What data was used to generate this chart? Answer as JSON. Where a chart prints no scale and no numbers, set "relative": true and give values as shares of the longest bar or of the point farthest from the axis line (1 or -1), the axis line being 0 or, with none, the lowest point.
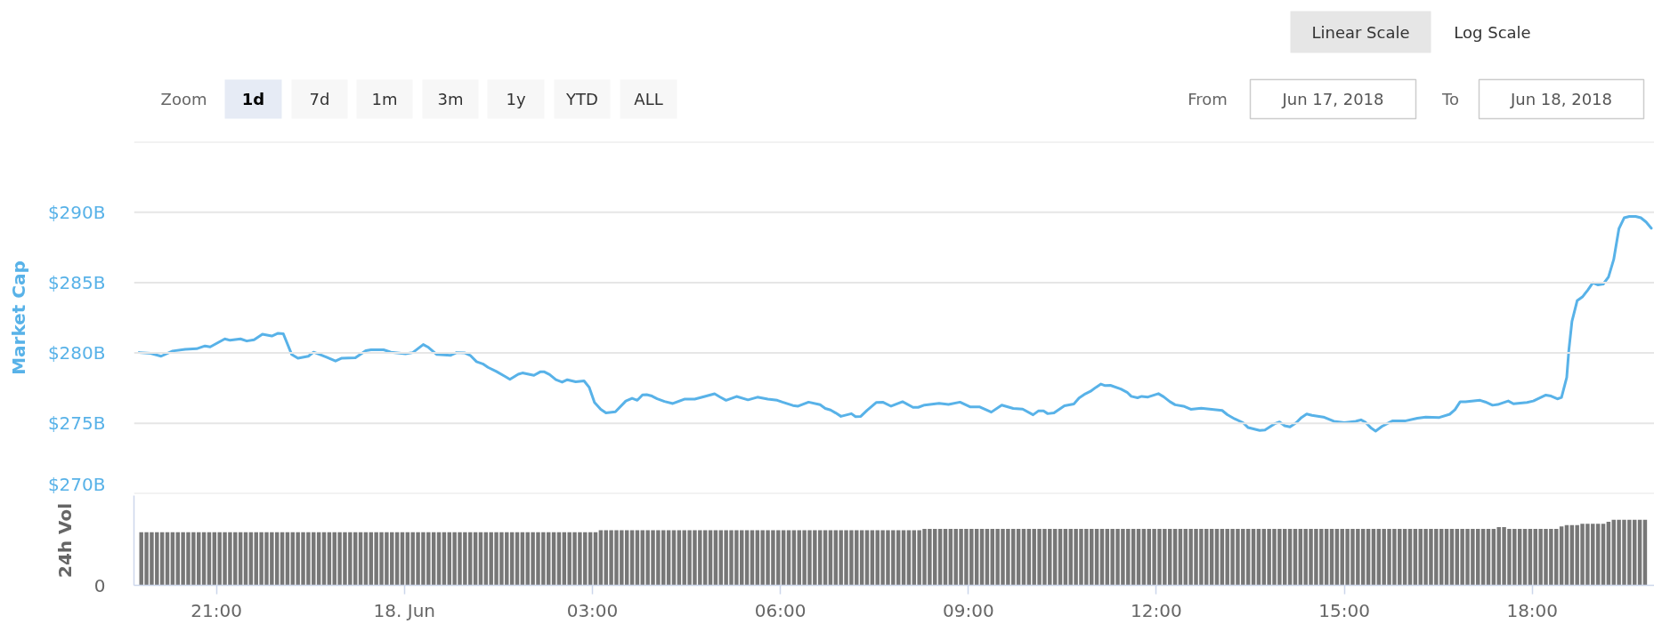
{
  "chart_data": [
    {
      "type": "line",
      "ylabel": "Market Cap",
      "color": "#58b2e8",
      "xlim": [
        "2018-06-17T19:41",
        "2018-06-18T19:57"
      ],
      "ylim": [
        270,
        295
      ],
      "yticks": [
        {
          "value": 270,
          "label": "$270B"
        },
        {
          "value": 275,
          "label": "$275B"
        },
        {
          "value": 280,
          "label": "$280B"
        },
        {
          "value": 285,
          "label": "$285B"
        },
        {
          "value": 290,
          "label": "$290B"
        },
        {
          "value": 295,
          "label": null
        }
      ],
      "grid": "y",
      "tick_labels": "y",
      "annotations": [
        "Linear Scale",
        "Log Scale",
        "Zoom",
        "1d",
        "7d",
        "1m",
        "3m",
        "1y",
        "YTD",
        "ALL",
        "From",
        "Jun 17, 2018",
        "To",
        "Jun 18, 2018"
      ],
      "x": [
        "2018-06-17T19:46",
        "2018-06-17T19:57",
        "2018-06-17T20:07",
        "2018-06-17T20:18",
        "2018-06-17T20:30",
        "2018-06-17T20:41",
        "2018-06-17T20:49",
        "2018-06-17T20:54",
        "2018-06-17T21:08",
        "2018-06-17T21:13",
        "2018-06-17T21:23",
        "2018-06-17T21:29",
        "2018-06-17T21:36",
        "2018-06-17T21:44",
        "2018-06-17T21:53",
        "2018-06-17T21:59",
        "2018-06-17T22:04",
        "2018-06-17T22:12",
        "2018-06-17T22:18",
        "2018-06-17T22:28",
        "2018-06-17T22:33",
        "2018-06-17T22:45",
        "2018-06-17T22:54",
        "2018-06-17T23:00",
        "2018-06-17T23:13",
        "2018-06-17T23:23",
        "2018-06-17T23:28",
        "2018-06-17T23:40",
        "2018-06-17T23:47",
        "2018-06-18T00:01",
        "2018-06-18T00:08",
        "2018-06-18T00:18",
        "2018-06-18T00:23",
        "2018-06-18T00:31",
        "2018-06-18T00:44",
        "2018-06-18T00:50",
        "2018-06-18T00:58",
        "2018-06-18T01:03",
        "2018-06-18T01:09",
        "2018-06-18T01:15",
        "2018-06-18T01:20",
        "2018-06-18T01:28",
        "2018-06-18T01:36",
        "2018-06-18T01:41",
        "2018-06-18T01:49",
        "2018-06-18T01:53",
        "2018-06-18T02:04",
        "2018-06-18T02:10",
        "2018-06-18T02:14",
        "2018-06-18T02:19",
        "2018-06-18T02:25",
        "2018-06-18T02:31",
        "2018-06-18T02:36",
        "2018-06-18T02:44",
        "2018-06-18T02:52",
        "2018-06-18T02:57",
        "2018-06-18T03:02",
        "2018-06-18T03:08",
        "2018-06-18T03:13",
        "2018-06-18T03:22",
        "2018-06-18T03:32",
        "2018-06-18T03:38",
        "2018-06-18T03:43",
        "2018-06-18T03:48",
        "2018-06-18T03:52",
        "2018-06-18T03:57",
        "2018-06-18T04:02",
        "2018-06-18T04:09",
        "2018-06-18T04:17",
        "2018-06-18T04:28",
        "2018-06-18T04:38",
        "2018-06-18T04:46",
        "2018-06-18T04:57",
        "2018-06-18T05:02",
        "2018-06-18T05:08",
        "2018-06-18T05:18",
        "2018-06-18T05:29",
        "2018-06-18T05:38",
        "2018-06-18T05:48",
        "2018-06-18T05:57",
        "2018-06-18T06:02",
        "2018-06-18T06:12",
        "2018-06-18T06:17",
        "2018-06-18T06:27",
        "2018-06-18T06:38",
        "2018-06-18T06:43",
        "2018-06-18T06:48",
        "2018-06-18T06:53",
        "2018-06-18T06:58",
        "2018-06-18T07:08",
        "2018-06-18T07:12",
        "2018-06-18T07:17",
        "2018-06-18T07:23",
        "2018-06-18T07:32",
        "2018-06-18T07:38",
        "2018-06-18T07:46",
        "2018-06-18T07:57",
        "2018-06-18T08:07",
        "2018-06-18T08:12",
        "2018-06-18T08:18",
        "2018-06-18T08:32",
        "2018-06-18T08:41",
        "2018-06-18T08:52",
        "2018-06-18T09:02",
        "2018-06-18T09:11",
        "2018-06-18T09:22",
        "2018-06-18T09:32",
        "2018-06-18T09:43",
        "2018-06-18T09:52",
        "2018-06-18T10:02",
        "2018-06-18T10:07",
        "2018-06-18T10:12",
        "2018-06-18T10:16",
        "2018-06-18T10:22",
        "2018-06-18T10:32",
        "2018-06-18T10:41",
        "2018-06-18T10:46",
        "2018-06-18T10:52",
        "2018-06-18T10:57",
        "2018-06-18T11:02",
        "2018-06-18T11:07",
        "2018-06-18T11:11",
        "2018-06-18T11:16",
        "2018-06-18T11:26",
        "2018-06-18T11:32",
        "2018-06-18T11:36",
        "2018-06-18T11:42",
        "2018-06-18T11:46",
        "2018-06-18T11:52",
        "2018-06-18T12:02",
        "2018-06-18T12:07",
        "2018-06-18T12:13",
        "2018-06-18T12:18",
        "2018-06-18T12:26",
        "2018-06-18T12:33",
        "2018-06-18T12:43",
        "2018-06-18T12:53",
        "2018-06-18T13:03",
        "2018-06-18T13:08",
        "2018-06-18T13:15",
        "2018-06-18T13:23",
        "2018-06-18T13:28",
        "2018-06-18T13:39",
        "2018-06-18T13:44",
        "2018-06-18T13:54",
        "2018-06-18T13:58",
        "2018-06-18T14:03",
        "2018-06-18T14:08",
        "2018-06-18T14:14",
        "2018-06-18T14:19",
        "2018-06-18T14:24",
        "2018-06-18T14:29",
        "2018-06-18T14:40",
        "2018-06-18T14:50",
        "2018-06-18T15:00",
        "2018-06-18T15:11",
        "2018-06-18T15:16",
        "2018-06-18T15:20",
        "2018-06-18T15:26",
        "2018-06-18T15:30",
        "2018-06-18T15:36",
        "2018-06-18T15:41",
        "2018-06-18T15:46",
        "2018-06-18T15:58",
        "2018-06-18T16:10",
        "2018-06-18T16:18",
        "2018-06-18T16:31",
        "2018-06-18T16:41",
        "2018-06-18T16:46",
        "2018-06-18T16:51",
        "2018-06-18T16:56",
        "2018-06-18T17:10",
        "2018-06-18T17:15",
        "2018-06-18T17:22",
        "2018-06-18T17:27",
        "2018-06-18T17:37",
        "2018-06-18T17:42",
        "2018-06-18T17:55",
        "2018-06-18T18:01",
        "2018-06-18T18:13",
        "2018-06-18T18:18",
        "2018-06-18T18:24",
        "2018-06-18T18:28",
        "2018-06-18T18:33",
        "2018-06-18T18:35",
        "2018-06-18T18:38",
        "2018-06-18T18:43",
        "2018-06-18T18:48",
        "2018-06-18T18:53",
        "2018-06-18T18:58",
        "2018-06-18T19:03",
        "2018-06-18T19:08",
        "2018-06-18T19:13",
        "2018-06-18T19:18",
        "2018-06-18T19:23",
        "2018-06-18T19:28",
        "2018-06-18T19:33",
        "2018-06-18T19:39",
        "2018-06-18T19:44",
        "2018-06-18T19:49",
        "2018-06-18T19:54"
      ],
      "values": [
        280.03,
        279.97,
        279.77,
        280.14,
        280.26,
        280.3,
        280.5,
        280.43,
        281,
        280.9,
        281,
        280.85,
        280.94,
        281.33,
        281.2,
        281.4,
        281.36,
        279.9,
        279.63,
        279.77,
        280.06,
        279.72,
        279.43,
        279.63,
        279.66,
        280.17,
        280.23,
        280.23,
        280.06,
        279.94,
        280.03,
        280.6,
        280.4,
        279.89,
        279.83,
        280.03,
        280,
        279.83,
        279.38,
        279.23,
        278.98,
        278.69,
        278.35,
        278.13,
        278.49,
        278.58,
        278.41,
        278.66,
        278.66,
        278.47,
        278.1,
        277.93,
        278.1,
        277.95,
        278.02,
        277.55,
        276.49,
        276,
        275.74,
        275.82,
        276.59,
        276.78,
        276.64,
        277.02,
        277.04,
        276.94,
        276.75,
        276.56,
        276.41,
        276.72,
        276.72,
        276.88,
        277.1,
        276.88,
        276.64,
        276.91,
        276.67,
        276.86,
        276.72,
        276.64,
        276.51,
        276.27,
        276.22,
        276.51,
        276.33,
        276.06,
        275.95,
        275.74,
        275.5,
        275.69,
        275.48,
        275.5,
        275.93,
        276.49,
        276.51,
        276.22,
        276.54,
        276.14,
        276.14,
        276.3,
        276.43,
        276.35,
        276.51,
        276.17,
        276.17,
        275.8,
        276.3,
        276.06,
        276.01,
        275.61,
        275.88,
        275.88,
        275.69,
        275.74,
        276.25,
        276.38,
        276.8,
        277.1,
        277.28,
        277.55,
        277.79,
        277.68,
        277.7,
        277.44,
        277.21,
        276.92,
        276.82,
        276.92,
        276.87,
        277.11,
        276.89,
        276.54,
        276.32,
        276.22,
        276,
        276.07,
        276,
        275.92,
        275.62,
        275.32,
        275.05,
        274.7,
        274.5,
        274.53,
        275,
        275.1,
        274.83,
        274.75,
        275.05,
        275.42,
        275.67,
        275.57,
        275.45,
        275.15,
        275.05,
        275.15,
        275.25,
        275.1,
        274.65,
        274.45,
        274.78,
        274.98,
        275.17,
        275.17,
        275.37,
        275.45,
        275.42,
        275.65,
        275.97,
        276.54,
        276.54,
        276.64,
        276.52,
        276.29,
        276.34,
        276.59,
        276.39,
        276.49,
        276.59,
        277.01,
        276.94,
        276.74,
        276.84,
        278.26,
        280.17,
        282.24,
        283.71,
        283.98,
        284.45,
        284.98,
        284.83,
        284.9,
        285.4,
        286.64,
        288.83,
        289.6,
        289.7,
        289.7,
        289.6,
        289.3,
        288.86
      ]
    },
    {
      "type": "bar",
      "relative": true,
      "ylabel": "24h Vol",
      "color": "#777777",
      "xlim": [
        "2018-06-17T19:41",
        "2018-06-18T19:57"
      ],
      "xticks": [
        {
          "value": "2018-06-17T21:00",
          "label": "21:00"
        },
        {
          "value": "2018-06-18T00:00",
          "label": "18. Jun"
        },
        {
          "value": "2018-06-18T03:00",
          "label": "03:00"
        },
        {
          "value": "2018-06-18T06:00",
          "label": "06:00"
        },
        {
          "value": "2018-06-18T09:00",
          "label": "09:00"
        },
        {
          "value": "2018-06-18T12:00",
          "label": "12:00"
        },
        {
          "value": "2018-06-18T15:00",
          "label": "15:00"
        },
        {
          "value": "2018-06-18T18:00",
          "label": "18:00"
        }
      ],
      "tick_labels": "x",
      "annotations": [
        "0"
      ],
      "x": [
        "2018-06-17T19:48",
        "2018-06-17T19:53",
        "2018-06-17T19:58",
        "2018-06-17T20:03",
        "2018-06-17T20:08",
        "2018-06-17T20:13",
        "2018-06-17T20:18",
        "2018-06-17T20:23",
        "2018-06-17T20:28",
        "2018-06-17T20:33",
        "2018-06-17T20:38",
        "2018-06-17T20:43",
        "2018-06-17T20:48",
        "2018-06-17T20:53",
        "2018-06-17T20:58",
        "2018-06-17T21:03",
        "2018-06-17T21:08",
        "2018-06-17T21:13",
        "2018-06-17T21:18",
        "2018-06-17T21:23",
        "2018-06-17T21:28",
        "2018-06-17T21:33",
        "2018-06-17T21:38",
        "2018-06-17T21:43",
        "2018-06-17T21:48",
        "2018-06-17T21:53",
        "2018-06-17T21:58",
        "2018-06-17T22:03",
        "2018-06-17T22:08",
        "2018-06-17T22:13",
        "2018-06-17T22:18",
        "2018-06-17T22:23",
        "2018-06-17T22:28",
        "2018-06-17T22:33",
        "2018-06-17T22:38",
        "2018-06-17T22:43",
        "2018-06-17T22:48",
        "2018-06-17T22:53",
        "2018-06-17T22:58",
        "2018-06-17T23:03",
        "2018-06-17T23:08",
        "2018-06-17T23:13",
        "2018-06-17T23:18",
        "2018-06-17T23:23",
        "2018-06-17T23:28",
        "2018-06-17T23:33",
        "2018-06-17T23:38",
        "2018-06-17T23:43",
        "2018-06-17T23:48",
        "2018-06-17T23:53",
        "2018-06-17T23:58",
        "2018-06-18T00:03",
        "2018-06-18T00:08",
        "2018-06-18T00:13",
        "2018-06-18T00:18",
        "2018-06-18T00:23",
        "2018-06-18T00:28",
        "2018-06-18T00:33",
        "2018-06-18T00:38",
        "2018-06-18T00:43",
        "2018-06-18T00:48",
        "2018-06-18T00:53",
        "2018-06-18T00:58",
        "2018-06-18T01:03",
        "2018-06-18T01:08",
        "2018-06-18T01:13",
        "2018-06-18T01:18",
        "2018-06-18T01:23",
        "2018-06-18T01:28",
        "2018-06-18T01:33",
        "2018-06-18T01:38",
        "2018-06-18T01:43",
        "2018-06-18T01:48",
        "2018-06-18T01:53",
        "2018-06-18T01:58",
        "2018-06-18T02:03",
        "2018-06-18T02:08",
        "2018-06-18T02:13",
        "2018-06-18T02:18",
        "2018-06-18T02:23",
        "2018-06-18T02:28",
        "2018-06-18T02:33",
        "2018-06-18T02:38",
        "2018-06-18T02:43",
        "2018-06-18T02:48",
        "2018-06-18T02:53",
        "2018-06-18T02:58",
        "2018-06-18T03:03",
        "2018-06-18T03:08",
        "2018-06-18T03:13",
        "2018-06-18T03:18",
        "2018-06-18T03:23",
        "2018-06-18T03:28",
        "2018-06-18T03:33",
        "2018-06-18T03:38",
        "2018-06-18T03:43",
        "2018-06-18T03:48",
        "2018-06-18T03:53",
        "2018-06-18T03:58",
        "2018-06-18T04:03",
        "2018-06-18T04:08",
        "2018-06-18T04:13",
        "2018-06-18T04:18",
        "2018-06-18T04:23",
        "2018-06-18T04:28",
        "2018-06-18T04:33",
        "2018-06-18T04:38",
        "2018-06-18T04:43",
        "2018-06-18T04:48",
        "2018-06-18T04:53",
        "2018-06-18T04:58",
        "2018-06-18T05:03",
        "2018-06-18T05:08",
        "2018-06-18T05:13",
        "2018-06-18T05:18",
        "2018-06-18T05:23",
        "2018-06-18T05:28",
        "2018-06-18T05:33",
        "2018-06-18T05:38",
        "2018-06-18T05:43",
        "2018-06-18T05:48",
        "2018-06-18T05:53",
        "2018-06-18T05:58",
        "2018-06-18T06:03",
        "2018-06-18T06:08",
        "2018-06-18T06:13",
        "2018-06-18T06:18",
        "2018-06-18T06:23",
        "2018-06-18T06:28",
        "2018-06-18T06:33",
        "2018-06-18T06:38",
        "2018-06-18T06:43",
        "2018-06-18T06:48",
        "2018-06-18T06:53",
        "2018-06-18T06:58",
        "2018-06-18T07:03",
        "2018-06-18T07:08",
        "2018-06-18T07:13",
        "2018-06-18T07:18",
        "2018-06-18T07:23",
        "2018-06-18T07:28",
        "2018-06-18T07:33",
        "2018-06-18T07:38",
        "2018-06-18T07:43",
        "2018-06-18T07:48",
        "2018-06-18T07:53",
        "2018-06-18T07:58",
        "2018-06-18T08:03",
        "2018-06-18T08:08",
        "2018-06-18T08:13",
        "2018-06-18T08:18",
        "2018-06-18T08:23",
        "2018-06-18T08:28",
        "2018-06-18T08:33",
        "2018-06-18T08:38",
        "2018-06-18T08:43",
        "2018-06-18T08:48",
        "2018-06-18T08:53",
        "2018-06-18T08:58",
        "2018-06-18T09:03",
        "2018-06-18T09:08",
        "2018-06-18T09:13",
        "2018-06-18T09:18",
        "2018-06-18T09:23",
        "2018-06-18T09:28",
        "2018-06-18T09:33",
        "2018-06-18T09:38",
        "2018-06-18T09:43",
        "2018-06-18T09:48",
        "2018-06-18T09:53",
        "2018-06-18T09:58",
        "2018-06-18T10:03",
        "2018-06-18T10:08",
        "2018-06-18T10:13",
        "2018-06-18T10:18",
        "2018-06-18T10:23",
        "2018-06-18T10:28",
        "2018-06-18T10:33",
        "2018-06-18T10:38",
        "2018-06-18T10:43",
        "2018-06-18T10:48",
        "2018-06-18T10:53",
        "2018-06-18T10:58",
        "2018-06-18T11:03",
        "2018-06-18T11:08",
        "2018-06-18T11:13",
        "2018-06-18T11:18",
        "2018-06-18T11:23",
        "2018-06-18T11:28",
        "2018-06-18T11:33",
        "2018-06-18T11:38",
        "2018-06-18T11:43",
        "2018-06-18T11:48",
        "2018-06-18T11:53",
        "2018-06-18T11:58",
        "2018-06-18T12:03",
        "2018-06-18T12:08",
        "2018-06-18T12:13",
        "2018-06-18T12:18",
        "2018-06-18T12:23",
        "2018-06-18T12:28",
        "2018-06-18T12:33",
        "2018-06-18T12:38",
        "2018-06-18T12:43",
        "2018-06-18T12:48",
        "2018-06-18T12:53",
        "2018-06-18T12:58",
        "2018-06-18T13:03",
        "2018-06-18T13:08",
        "2018-06-18T13:13",
        "2018-06-18T13:18",
        "2018-06-18T13:23",
        "2018-06-18T13:28",
        "2018-06-18T13:33",
        "2018-06-18T13:38",
        "2018-06-18T13:43",
        "2018-06-18T13:48",
        "2018-06-18T13:53",
        "2018-06-18T13:58",
        "2018-06-18T14:03",
        "2018-06-18T14:08",
        "2018-06-18T14:13",
        "2018-06-18T14:18",
        "2018-06-18T14:23",
        "2018-06-18T14:28",
        "2018-06-18T14:33",
        "2018-06-18T14:38",
        "2018-06-18T14:43",
        "2018-06-18T14:48",
        "2018-06-18T14:53",
        "2018-06-18T14:58",
        "2018-06-18T15:03",
        "2018-06-18T15:08",
        "2018-06-18T15:13",
        "2018-06-18T15:18",
        "2018-06-18T15:23",
        "2018-06-18T15:28",
        "2018-06-18T15:33",
        "2018-06-18T15:38",
        "2018-06-18T15:43",
        "2018-06-18T15:48",
        "2018-06-18T15:53",
        "2018-06-18T15:58",
        "2018-06-18T16:03",
        "2018-06-18T16:08",
        "2018-06-18T16:13",
        "2018-06-18T16:18",
        "2018-06-18T16:23",
        "2018-06-18T16:28",
        "2018-06-18T16:33",
        "2018-06-18T16:38",
        "2018-06-18T16:43",
        "2018-06-18T16:48",
        "2018-06-18T16:53",
        "2018-06-18T16:58",
        "2018-06-18T17:03",
        "2018-06-18T17:08",
        "2018-06-18T17:13",
        "2018-06-18T17:18",
        "2018-06-18T17:23",
        "2018-06-18T17:28",
        "2018-06-18T17:33",
        "2018-06-18T17:38",
        "2018-06-18T17:43",
        "2018-06-18T17:48",
        "2018-06-18T17:53",
        "2018-06-18T17:58",
        "2018-06-18T18:03",
        "2018-06-18T18:08",
        "2018-06-18T18:13",
        "2018-06-18T18:18",
        "2018-06-18T18:23",
        "2018-06-18T18:28",
        "2018-06-18T18:33",
        "2018-06-18T18:38",
        "2018-06-18T18:43",
        "2018-06-18T18:48",
        "2018-06-18T18:53",
        "2018-06-18T18:58",
        "2018-06-18T19:03",
        "2018-06-18T19:08",
        "2018-06-18T19:13",
        "2018-06-18T19:18",
        "2018-06-18T19:23",
        "2018-06-18T19:28",
        "2018-06-18T19:33",
        "2018-06-18T19:38",
        "2018-06-18T19:43",
        "2018-06-18T19:48"
      ],
      "values": [
        0.81,
        0.81,
        0.81,
        0.81,
        0.81,
        0.81,
        0.81,
        0.81,
        0.81,
        0.81,
        0.81,
        0.81,
        0.81,
        0.81,
        0.81,
        0.81,
        0.81,
        0.81,
        0.81,
        0.81,
        0.81,
        0.81,
        0.81,
        0.81,
        0.81,
        0.81,
        0.81,
        0.81,
        0.81,
        0.81,
        0.81,
        0.81,
        0.81,
        0.81,
        0.81,
        0.81,
        0.81,
        0.81,
        0.81,
        0.81,
        0.81,
        0.81,
        0.81,
        0.81,
        0.81,
        0.81,
        0.81,
        0.81,
        0.81,
        0.81,
        0.81,
        0.81,
        0.81,
        0.81,
        0.81,
        0.81,
        0.81,
        0.81,
        0.81,
        0.81,
        0.81,
        0.81,
        0.81,
        0.81,
        0.81,
        0.81,
        0.81,
        0.81,
        0.81,
        0.81,
        0.81,
        0.81,
        0.81,
        0.81,
        0.81,
        0.81,
        0.81,
        0.81,
        0.81,
        0.81,
        0.81,
        0.81,
        0.81,
        0.81,
        0.81,
        0.81,
        0.81,
        0.81,
        0.84,
        0.84,
        0.84,
        0.84,
        0.84,
        0.84,
        0.84,
        0.84,
        0.84,
        0.84,
        0.84,
        0.84,
        0.84,
        0.84,
        0.84,
        0.84,
        0.84,
        0.84,
        0.84,
        0.84,
        0.84,
        0.84,
        0.84,
        0.84,
        0.84,
        0.84,
        0.84,
        0.84,
        0.84,
        0.84,
        0.84,
        0.84,
        0.84,
        0.84,
        0.84,
        0.84,
        0.84,
        0.84,
        0.84,
        0.84,
        0.84,
        0.84,
        0.84,
        0.84,
        0.84,
        0.84,
        0.84,
        0.84,
        0.84,
        0.84,
        0.84,
        0.84,
        0.84,
        0.84,
        0.84,
        0.84,
        0.84,
        0.84,
        0.84,
        0.84,
        0.84,
        0.84,
        0.86,
        0.86,
        0.86,
        0.86,
        0.86,
        0.86,
        0.86,
        0.86,
        0.86,
        0.86,
        0.86,
        0.86,
        0.86,
        0.86,
        0.86,
        0.86,
        0.86,
        0.86,
        0.86,
        0.86,
        0.86,
        0.86,
        0.86,
        0.86,
        0.86,
        0.86,
        0.86,
        0.86,
        0.86,
        0.86,
        0.86,
        0.86,
        0.86,
        0.86,
        0.86,
        0.86,
        0.86,
        0.86,
        0.86,
        0.86,
        0.86,
        0.86,
        0.86,
        0.86,
        0.86,
        0.86,
        0.86,
        0.86,
        0.86,
        0.86,
        0.86,
        0.86,
        0.86,
        0.86,
        0.86,
        0.86,
        0.86,
        0.86,
        0.86,
        0.86,
        0.86,
        0.86,
        0.86,
        0.86,
        0.86,
        0.86,
        0.86,
        0.86,
        0.86,
        0.86,
        0.86,
        0.86,
        0.86,
        0.86,
        0.86,
        0.86,
        0.86,
        0.86,
        0.86,
        0.86,
        0.86,
        0.86,
        0.86,
        0.86,
        0.86,
        0.86,
        0.86,
        0.86,
        0.86,
        0.86,
        0.86,
        0.86,
        0.86,
        0.86,
        0.86,
        0.86,
        0.86,
        0.86,
        0.86,
        0.86,
        0.86,
        0.86,
        0.86,
        0.86,
        0.86,
        0.86,
        0.86,
        0.86,
        0.86,
        0.86,
        0.89,
        0.89,
        0.86,
        0.86,
        0.86,
        0.86,
        0.86,
        0.86,
        0.86,
        0.86,
        0.86,
        0.86,
        0.9,
        0.92,
        0.92,
        0.92,
        0.94,
        0.94,
        0.94,
        0.94,
        0.94,
        0.97,
        1,
        1,
        1,
        1,
        1,
        1,
        1
      ]
    }
  ]
}
